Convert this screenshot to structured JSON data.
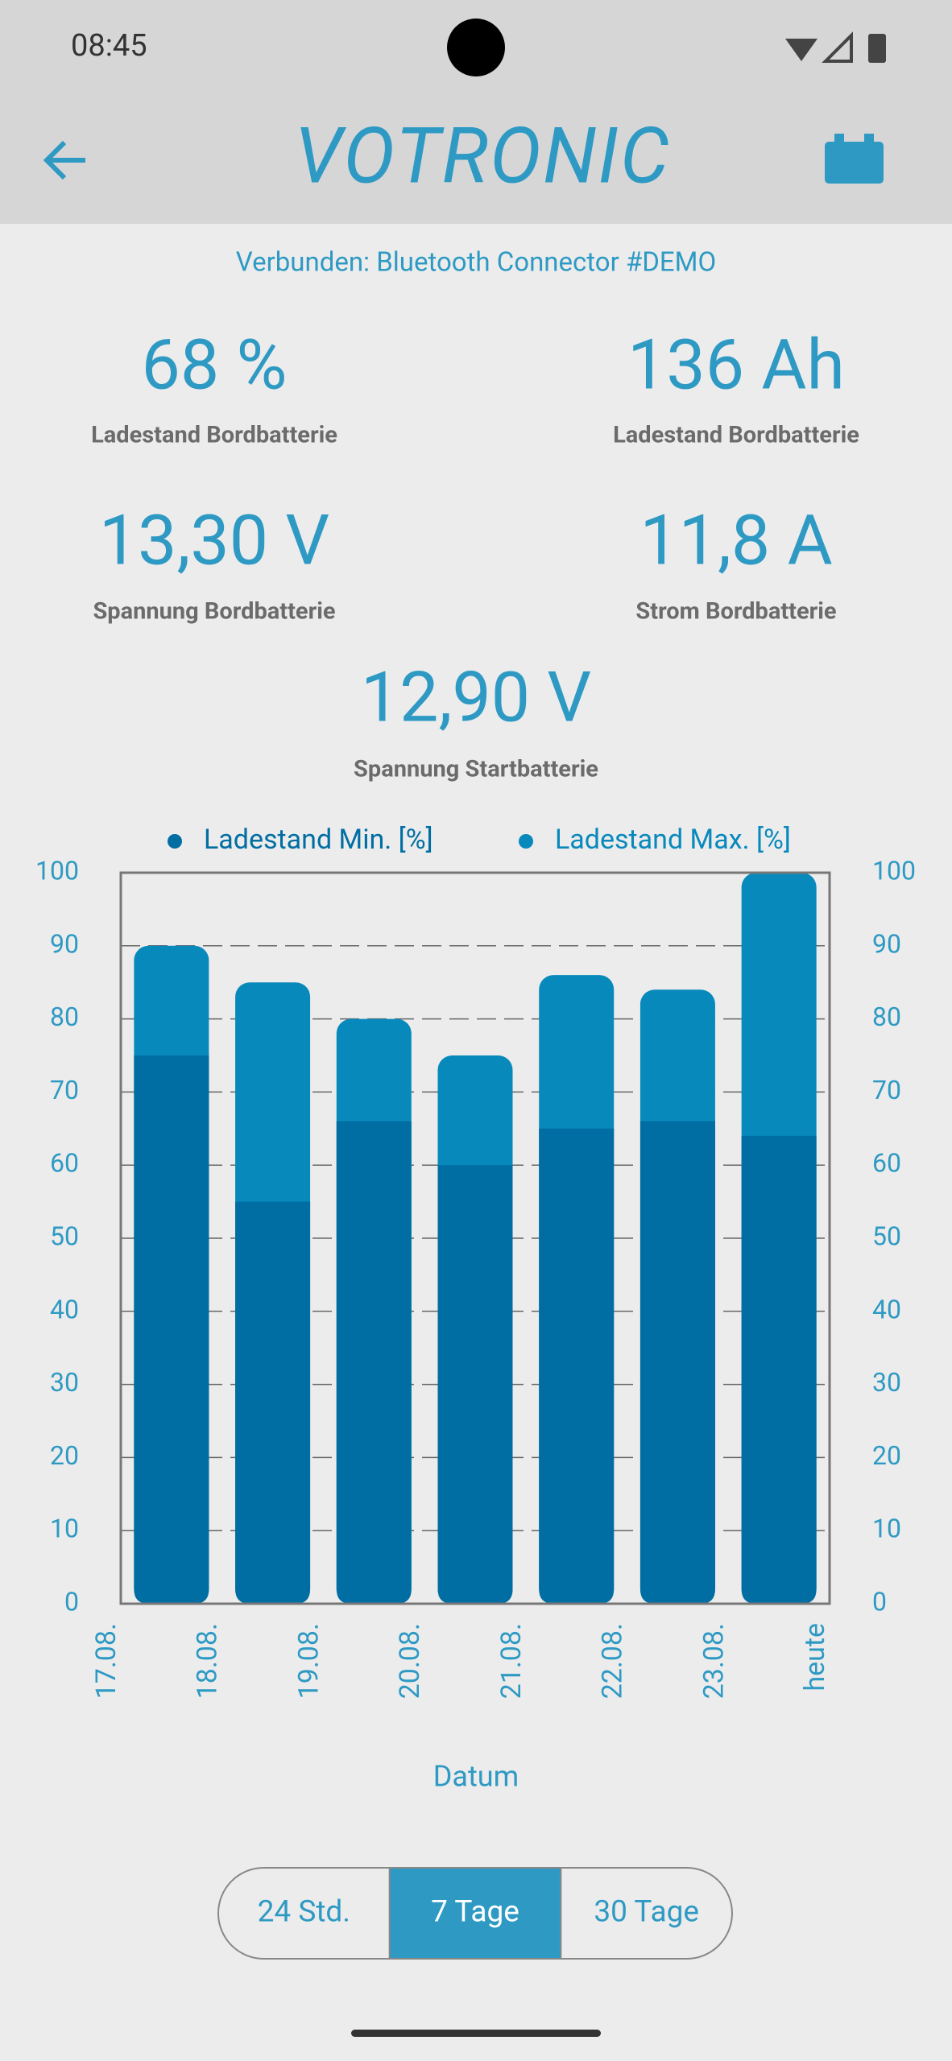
{
  "status": {
    "time": "08:45"
  },
  "header": {
    "logo": "VOTRONIC",
    "connection": "Verbunden: Bluetooth Connector #DEMO"
  },
  "stats": [
    {
      "value": "68 %",
      "label": "Ladestand Bordbatterie"
    },
    {
      "value": "136 Ah",
      "label": "Ladestand Bordbatterie"
    },
    {
      "value": "13,30 V",
      "label": "Spannung Bordbatterie"
    },
    {
      "value": "11,8 A",
      "label": "Strom Bordbatterie"
    },
    {
      "value": "12,90 V",
      "label": "Spannung Startbatterie"
    }
  ],
  "chart_data": {
    "type": "bar",
    "xlabel": "Datum",
    "x_labels": [
      "17.08.",
      "18.08.",
      "19.08.",
      "20.08.",
      "21.08.",
      "22.08.",
      "23.08.",
      "heute"
    ],
    "series": [
      {
        "name": "Ladestand Min. [%]",
        "color": "#006ea3",
        "values": [
          75,
          55,
          66,
          60,
          65,
          66,
          64
        ]
      },
      {
        "name": "Ladestand Max. [%]",
        "color": "#0889bc",
        "values": [
          90,
          85,
          80,
          75,
          86,
          84,
          100
        ]
      }
    ],
    "ylim": [
      0,
      100
    ],
    "yticks": [
      0,
      10,
      20,
      30,
      40,
      50,
      60,
      70,
      80,
      90,
      100
    ],
    "y2lim": [
      0,
      100
    ],
    "y2ticks": [
      0,
      10,
      20,
      30,
      40,
      50,
      60,
      70,
      80,
      90,
      100
    ],
    "grid": true
  },
  "range_toggle": {
    "options": [
      "24 Std.",
      "7 Tage",
      "30 Tage"
    ],
    "selected": 1
  }
}
